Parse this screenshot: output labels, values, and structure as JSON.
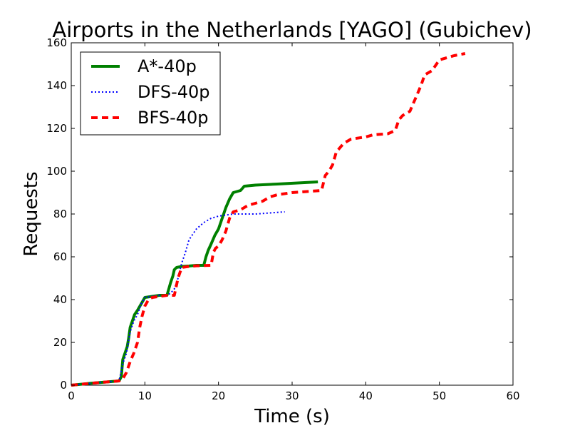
{
  "chart_data": {
    "type": "line",
    "title": "Airports in the Netherlands [YAGO] (Gubichev)",
    "xlabel": "Time (s)",
    "ylabel": "Requests",
    "xlim": [
      0,
      60
    ],
    "ylim": [
      0,
      160
    ],
    "xticks": [
      0,
      10,
      20,
      30,
      40,
      50,
      60
    ],
    "yticks": [
      0,
      20,
      40,
      60,
      80,
      100,
      120,
      140,
      160
    ],
    "grid": false,
    "legend_position": "top-left",
    "series": [
      {
        "name": "A*-40p",
        "color": "#008000",
        "style": "solid",
        "points": [
          [
            0,
            0
          ],
          [
            3,
            1
          ],
          [
            6.5,
            2
          ],
          [
            6.8,
            4
          ],
          [
            7,
            12
          ],
          [
            7.3,
            15
          ],
          [
            7.6,
            18
          ],
          [
            7.8,
            22
          ],
          [
            8,
            27
          ],
          [
            8.3,
            30
          ],
          [
            8.6,
            33
          ],
          [
            9,
            35
          ],
          [
            9.5,
            38
          ],
          [
            10,
            41
          ],
          [
            11,
            41.5
          ],
          [
            12,
            42
          ],
          [
            13,
            42
          ],
          [
            13.5,
            48
          ],
          [
            13.8,
            51
          ],
          [
            14,
            54
          ],
          [
            14.3,
            55
          ],
          [
            15,
            55.5
          ],
          [
            16,
            55.7
          ],
          [
            17,
            56
          ],
          [
            18,
            56
          ],
          [
            18.3,
            60
          ],
          [
            18.6,
            63
          ],
          [
            19,
            66
          ],
          [
            19.5,
            70
          ],
          [
            20,
            73
          ],
          [
            20.5,
            78
          ],
          [
            21,
            83
          ],
          [
            21.5,
            87
          ],
          [
            22,
            90
          ],
          [
            23,
            91
          ],
          [
            23.5,
            93
          ],
          [
            25,
            93.5
          ],
          [
            28,
            94
          ],
          [
            33.5,
            95
          ]
        ]
      },
      {
        "name": "DFS-40p",
        "color": "#0000ff",
        "style": "dotted",
        "points": [
          [
            0,
            0
          ],
          [
            3,
            1
          ],
          [
            6.5,
            2
          ],
          [
            7,
            10
          ],
          [
            7.5,
            15
          ],
          [
            8,
            25
          ],
          [
            8.5,
            30
          ],
          [
            9,
            33
          ],
          [
            9.5,
            38
          ],
          [
            10,
            41
          ],
          [
            11,
            41.5
          ],
          [
            12,
            42
          ],
          [
            13,
            42
          ],
          [
            13.5,
            43
          ],
          [
            14,
            45
          ],
          [
            14.5,
            50
          ],
          [
            15,
            57
          ],
          [
            15.5,
            62
          ],
          [
            16,
            68
          ],
          [
            17,
            73
          ],
          [
            18,
            76
          ],
          [
            19,
            78
          ],
          [
            20,
            79
          ],
          [
            22,
            80
          ],
          [
            25,
            80
          ],
          [
            27,
            80.5
          ],
          [
            29,
            81
          ]
        ]
      },
      {
        "name": "BFS-40p",
        "color": "#ff0000",
        "style": "dashed",
        "points": [
          [
            0,
            0
          ],
          [
            3,
            1
          ],
          [
            6.5,
            2
          ],
          [
            7,
            3
          ],
          [
            7.5,
            6
          ],
          [
            8,
            11
          ],
          [
            8.5,
            15
          ],
          [
            9,
            20
          ],
          [
            9.3,
            27
          ],
          [
            9.6,
            32
          ],
          [
            10,
            37
          ],
          [
            10.5,
            40
          ],
          [
            11,
            41
          ],
          [
            12,
            41.5
          ],
          [
            13,
            42
          ],
          [
            14,
            42
          ],
          [
            14.5,
            50
          ],
          [
            15,
            55
          ],
          [
            16,
            55.5
          ],
          [
            17,
            55.8
          ],
          [
            19,
            56
          ],
          [
            19.3,
            62
          ],
          [
            19.6,
            64
          ],
          [
            20,
            65
          ],
          [
            20.5,
            68
          ],
          [
            21,
            72
          ],
          [
            21.5,
            78
          ],
          [
            22,
            81
          ],
          [
            23,
            82
          ],
          [
            24,
            84
          ],
          [
            25,
            85
          ],
          [
            26,
            86
          ],
          [
            27,
            88
          ],
          [
            28,
            89
          ],
          [
            30,
            90
          ],
          [
            32,
            90.5
          ],
          [
            34,
            91
          ],
          [
            34.5,
            98
          ],
          [
            35,
            100
          ],
          [
            35.5,
            103
          ],
          [
            36,
            109
          ],
          [
            37,
            113
          ],
          [
            38,
            115
          ],
          [
            40,
            116
          ],
          [
            41,
            117
          ],
          [
            43,
            117.5
          ],
          [
            44,
            119
          ],
          [
            44.5,
            124
          ],
          [
            45,
            126
          ],
          [
            46,
            128
          ],
          [
            46.5,
            132
          ],
          [
            47,
            136
          ],
          [
            47.5,
            140
          ],
          [
            48,
            145
          ],
          [
            49,
            147
          ],
          [
            50,
            152
          ],
          [
            52,
            154
          ],
          [
            53.5,
            155
          ]
        ]
      }
    ]
  }
}
